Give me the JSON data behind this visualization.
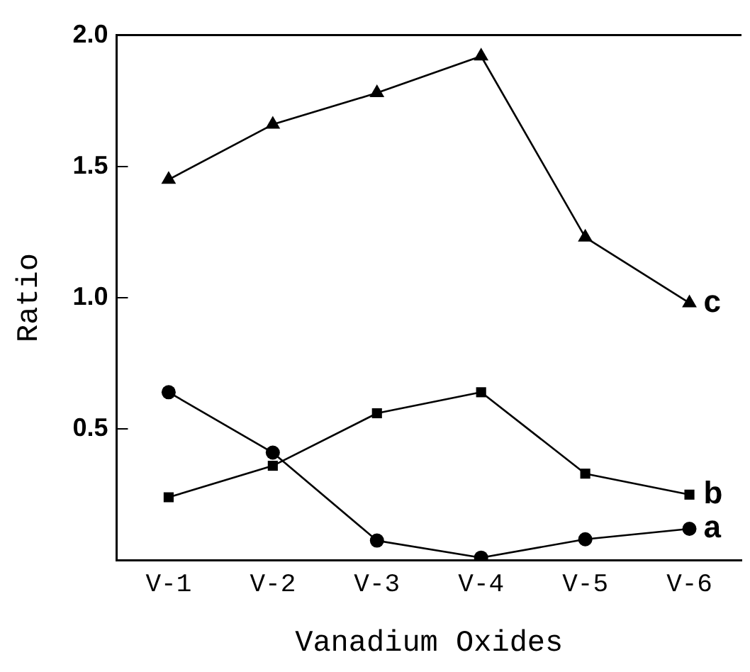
{
  "chart_data": {
    "type": "line",
    "xlabel": "Vanadium Oxides",
    "ylabel": "Ratio",
    "categories": [
      "V-1",
      "V-2",
      "V-3",
      "V-4",
      "V-5",
      "V-6"
    ],
    "ylim": [
      0,
      2.0
    ],
    "yticks": [
      {
        "value": 0.5,
        "label": "0.5"
      },
      {
        "value": 1.0,
        "label": "1.0"
      },
      {
        "value": 1.5,
        "label": "1.5"
      },
      {
        "value": 2.0,
        "label": "2.0"
      }
    ],
    "grid": false,
    "legend": false,
    "line_style": "solid",
    "series": [
      {
        "name": "a",
        "color": "#000000",
        "marker": "circle",
        "values": [
          0.64,
          0.41,
          0.075,
          0.01,
          0.08,
          0.12
        ]
      },
      {
        "name": "b",
        "color": "#000000",
        "marker": "square",
        "values": [
          0.24,
          0.36,
          0.56,
          0.64,
          0.33,
          0.25
        ]
      },
      {
        "name": "c",
        "color": "#000000",
        "marker": "triangle",
        "values": [
          1.45,
          1.66,
          1.78,
          1.92,
          1.23,
          0.98
        ]
      }
    ]
  }
}
